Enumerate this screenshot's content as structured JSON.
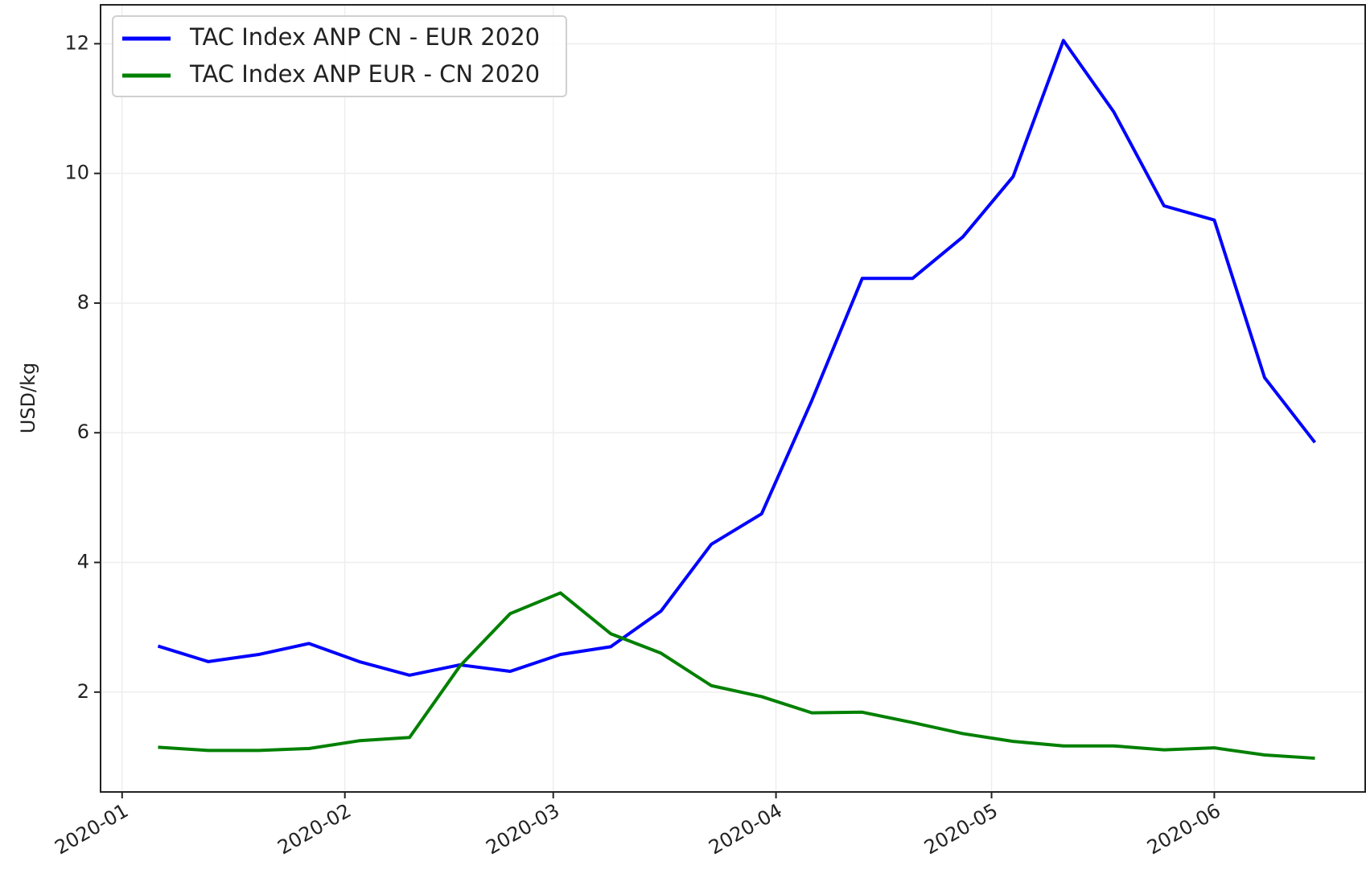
{
  "chart_data": {
    "type": "line",
    "ylabel": "USD/kg",
    "x": [
      5,
      12,
      19,
      26,
      33,
      40,
      47,
      54,
      61,
      68,
      75,
      82,
      89,
      96,
      103,
      110,
      117,
      124,
      131,
      138,
      145,
      152,
      159,
      166
    ],
    "series": [
      {
        "name": "TAC Index ANP CN - EUR 2020",
        "color": "#0000ff",
        "values": [
          2.71,
          2.47,
          2.58,
          2.75,
          2.47,
          2.26,
          2.42,
          2.32,
          2.58,
          2.7,
          3.25,
          4.28,
          4.75,
          6.5,
          8.38,
          8.38,
          9.02,
          9.95,
          12.05,
          10.95,
          9.5,
          9.28,
          6.85,
          5.85
        ]
      },
      {
        "name": "TAC Index ANP EUR - CN 2020",
        "color": "#008000",
        "values": [
          1.15,
          1.1,
          1.1,
          1.13,
          1.25,
          1.3,
          2.4,
          3.21,
          3.53,
          2.9,
          2.6,
          2.1,
          1.93,
          1.68,
          1.69,
          1.53,
          1.36,
          1.24,
          1.17,
          1.17,
          1.11,
          1.14,
          1.03,
          0.98
        ]
      }
    ],
    "xlim": [
      -3,
      173
    ],
    "xticks": [
      {
        "value": 0,
        "label": "2020-01"
      },
      {
        "value": 31,
        "label": "2020-02"
      },
      {
        "value": 60,
        "label": "2020-03"
      },
      {
        "value": 91,
        "label": "2020-04"
      },
      {
        "value": 121,
        "label": "2020-05"
      },
      {
        "value": 152,
        "label": "2020-06"
      }
    ],
    "ylim": [
      0.46,
      12.6
    ],
    "yticks": [
      2,
      4,
      6,
      8,
      10,
      12
    ],
    "grid": true,
    "legend": "upper left"
  }
}
